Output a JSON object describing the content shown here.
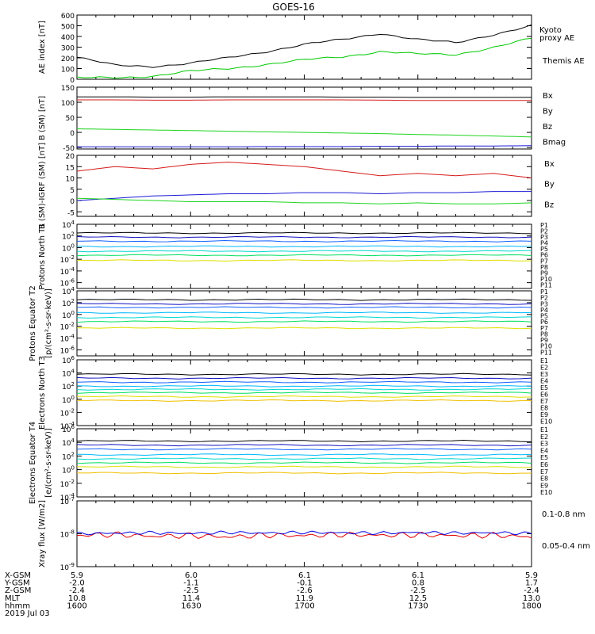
{
  "title": "GOES-16",
  "colors": {
    "black": "#000000",
    "green": "#00c800",
    "red": "#e00000",
    "blue": "#0000e0",
    "b_green": "#1fd41f",
    "b_red": "#d61a1a",
    "b_blue": "#1a1ad6",
    "channels": [
      "#000000",
      "#000000",
      "#1010c0",
      "#1060ff",
      "#00b8ff",
      "#00d8d0",
      "#00e060",
      "#e0e000",
      "#f0c000",
      "#f08000",
      "#d00000",
      "#a00000"
    ]
  },
  "x_axis": {
    "rows": [
      {
        "label": "X-GSM",
        "values": [
          "5.9",
          "6.0",
          "6.1",
          "6.1",
          "5.9"
        ]
      },
      {
        "label": "Y-GSM",
        "values": [
          "-2.0",
          "-1.1",
          "-0.1",
          "0.8",
          "1.7"
        ]
      },
      {
        "label": "Z-GSM",
        "values": [
          "-2.4",
          "-2.5",
          "-2.6",
          "-2.5",
          "-2.4"
        ]
      },
      {
        "label": "MLT",
        "values": [
          "10.8",
          "11.4",
          "11.9",
          "12.5",
          "13.0"
        ]
      },
      {
        "label": "hhmm",
        "values": [
          "1600",
          "1630",
          "1700",
          "1730",
          "1800"
        ]
      }
    ],
    "date": "2019 Jul 03"
  },
  "chart_data": [
    {
      "type": "line",
      "ylabel": "AE index [nT]",
      "ylim": [
        0,
        600
      ],
      "ticks": [
        "0",
        "100",
        "200",
        "300",
        "400",
        "500",
        "600"
      ],
      "legend": [
        "Kyoto",
        "proxy AE",
        "Themis AE"
      ],
      "time_minutes": [
        0,
        10,
        20,
        30,
        40,
        50,
        60,
        70,
        80,
        90,
        100,
        110,
        120
      ],
      "series": [
        {
          "name": "Themis AE",
          "values": [
            205,
            130,
            120,
            150,
            200,
            260,
            325,
            370,
            430,
            370,
            340,
            420,
            500
          ]
        },
        {
          "name": "proxy AE",
          "values": [
            12,
            15,
            30,
            75,
            100,
            140,
            180,
            210,
            260,
            235,
            230,
            300,
            380
          ]
        }
      ]
    },
    {
      "type": "line",
      "ylabel": "B (SM) [nT]",
      "ylim": [
        -55,
        150
      ],
      "ticks": [
        "-50",
        "0",
        "50",
        "100",
        "150"
      ],
      "legend": [
        "Bx",
        "By",
        "Bz",
        "Bmag"
      ],
      "series": [
        {
          "name": "Bmag",
          "values": [
            118,
            118,
            117,
            117,
            118,
            118,
            118,
            117,
            117,
            116,
            116,
            116,
            116
          ]
        },
        {
          "name": "Bz",
          "values": [
            108,
            108,
            107,
            107,
            108,
            108,
            108,
            108,
            107,
            106,
            106,
            106,
            106
          ]
        },
        {
          "name": "By",
          "values": [
            12,
            10,
            8,
            6,
            4,
            2,
            0,
            -2,
            -4,
            -7,
            -9,
            -12,
            -15
          ]
        },
        {
          "name": "Bx",
          "values": [
            -48,
            -48,
            -48,
            -48,
            -48,
            -47,
            -47,
            -47,
            -46,
            -46,
            -45,
            -45,
            -44
          ]
        }
      ]
    },
    {
      "type": "line",
      "ylabel": "B (SM)-IGRF (SM) [nT]",
      "ylim": [
        -7,
        20
      ],
      "ticks": [
        "-5",
        "0",
        "5",
        "10",
        "15",
        "20"
      ],
      "legend": [
        "Bx",
        "By",
        "Bz"
      ],
      "series": [
        {
          "name": "Bz",
          "values": [
            13,
            15,
            14,
            16,
            17,
            16,
            15,
            13,
            11,
            12,
            11,
            12,
            10
          ]
        },
        {
          "name": "Bx",
          "values": [
            0,
            1,
            2,
            2.5,
            3,
            3,
            3.5,
            3.5,
            3,
            3.5,
            3.5,
            4,
            4
          ]
        },
        {
          "name": "By",
          "values": [
            1,
            0.5,
            0,
            -0.5,
            -0.5,
            -0.5,
            -1,
            -1,
            -1.5,
            -1,
            -1.5,
            -1.5,
            -1
          ]
        }
      ]
    },
    {
      "type": "line",
      "ylabel": "Protons North T1",
      "log": true,
      "ylim_exp": [
        -7,
        4
      ],
      "ticks": [
        "10^-6",
        "10^-4",
        "10^-2",
        "10^0",
        "10^2",
        "10^4"
      ],
      "legend": [
        "P1",
        "P2",
        "P3",
        "P4",
        "P5",
        "P6",
        "P7",
        "P8",
        "P9",
        "P10",
        "P11"
      ],
      "levels": [
        2.5,
        1.8,
        1.1,
        0.2,
        -0.6,
        -1.3,
        -2.2
      ]
    },
    {
      "type": "line",
      "ylabel": "Protons Equator T2",
      "unit": "[p/(cm²-s-sr-keV)]",
      "log": true,
      "ylim_exp": [
        -7,
        4
      ],
      "ticks": [
        "10^-6",
        "10^-4",
        "10^-2",
        "10^0",
        "10^2",
        "10^4"
      ],
      "legend": [
        "P1",
        "P2",
        "P3",
        "P4",
        "P5",
        "P6",
        "P7",
        "P8",
        "P9",
        "P10",
        "P11"
      ],
      "levels": [
        2.5,
        1.8,
        1.2,
        0.3,
        -0.5,
        -1.2,
        -2.3
      ]
    },
    {
      "type": "line",
      "ylabel": "Electrons North T3",
      "log": true,
      "ylim_exp": [
        -4,
        6
      ],
      "ticks": [
        "10^-4",
        "10^-2",
        "10^0",
        "10^2",
        "10^4",
        "10^6"
      ],
      "legend": [
        "E1",
        "E2",
        "E3",
        "E4",
        "E5",
        "E6",
        "E7",
        "E8",
        "E9",
        "E10"
      ],
      "levels": [
        3.8,
        3.2,
        2.6,
        2.0,
        1.5,
        1.0,
        0.4,
        -0.2
      ]
    },
    {
      "type": "line",
      "ylabel": "Electrons Equator T4",
      "unit": "[e/(cm²-s-sr-keV)]",
      "log": true,
      "ylim_exp": [
        -4,
        6
      ],
      "ticks": [
        "10^-4",
        "10^-2",
        "10^0",
        "10^2",
        "10^4",
        "10^6"
      ],
      "legend": [
        "E1",
        "E2",
        "E3",
        "E4",
        "E5",
        "E6",
        "E7",
        "E8",
        "E9",
        "E10"
      ],
      "levels": [
        4.2,
        3.6,
        3.0,
        2.2,
        1.6,
        1.0,
        0.4,
        -0.5
      ]
    },
    {
      "type": "line",
      "ylabel": "Xray flux [W/m2]",
      "log": true,
      "ylim_exp": [
        -9,
        -7
      ],
      "ticks": [
        "10^-9",
        "10^-8",
        "10^-7"
      ],
      "legend": [
        "0.1-0.8 nm",
        "0.05-0.4 nm"
      ],
      "series": [
        {
          "name": "0.1-0.8 nm",
          "values": [
            -8.05,
            -8.02,
            -8.08,
            -8.05,
            -8.1,
            -8.04,
            -8.06,
            -8.02,
            -8.05,
            -8.03,
            -8.06,
            -8.04,
            -8.1
          ]
        },
        {
          "name": "0.05-0.4 nm",
          "values": [
            -8.0,
            -7.98,
            -7.97,
            -7.99,
            -7.96,
            -7.98,
            -7.96,
            -7.97,
            -7.98,
            -7.96,
            -7.98,
            -7.97,
            -7.99
          ]
        }
      ]
    }
  ]
}
